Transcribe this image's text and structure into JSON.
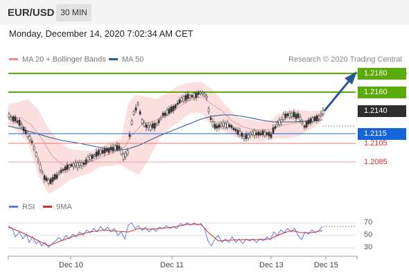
{
  "header": {
    "symbol": "EUR/USD",
    "timeframe": "30 MIN"
  },
  "datetime": "Monday, December 14, 2020 7:02:34 AM CET",
  "legend": {
    "bb": {
      "label": "MA 20 + Bollinger Bands",
      "color": "#f08a8a"
    },
    "ma50": {
      "label": "MA 50",
      "color": "#2b5797"
    }
  },
  "credit": "Research © 2020 Trading Central",
  "levels": [
    {
      "value": "1.2180",
      "type": "resistance",
      "color": "#5aab0a"
    },
    {
      "value": "1.2160",
      "type": "resistance",
      "color": "#5aab0a"
    },
    {
      "value": "1.2140",
      "type": "last",
      "color": "#2e2e2e"
    },
    {
      "value": "1.2115",
      "type": "pivot",
      "color": "#1565d8"
    },
    {
      "value": "1.2105",
      "type": "support",
      "color": "#d32f2f"
    },
    {
      "value": "1.2085",
      "type": "support",
      "color": "#d32f2f"
    }
  ],
  "rsi": {
    "legend": {
      "rsi": "RSI",
      "ma": "9MA"
    },
    "colors": {
      "rsi": "#5b7fd6",
      "ma": "#d32f2f"
    },
    "ticks": [
      "70",
      "50",
      "30"
    ]
  },
  "x_labels": [
    "Dec 10",
    "Dec 11",
    "Dec 13",
    "Dec 15"
  ]
}
